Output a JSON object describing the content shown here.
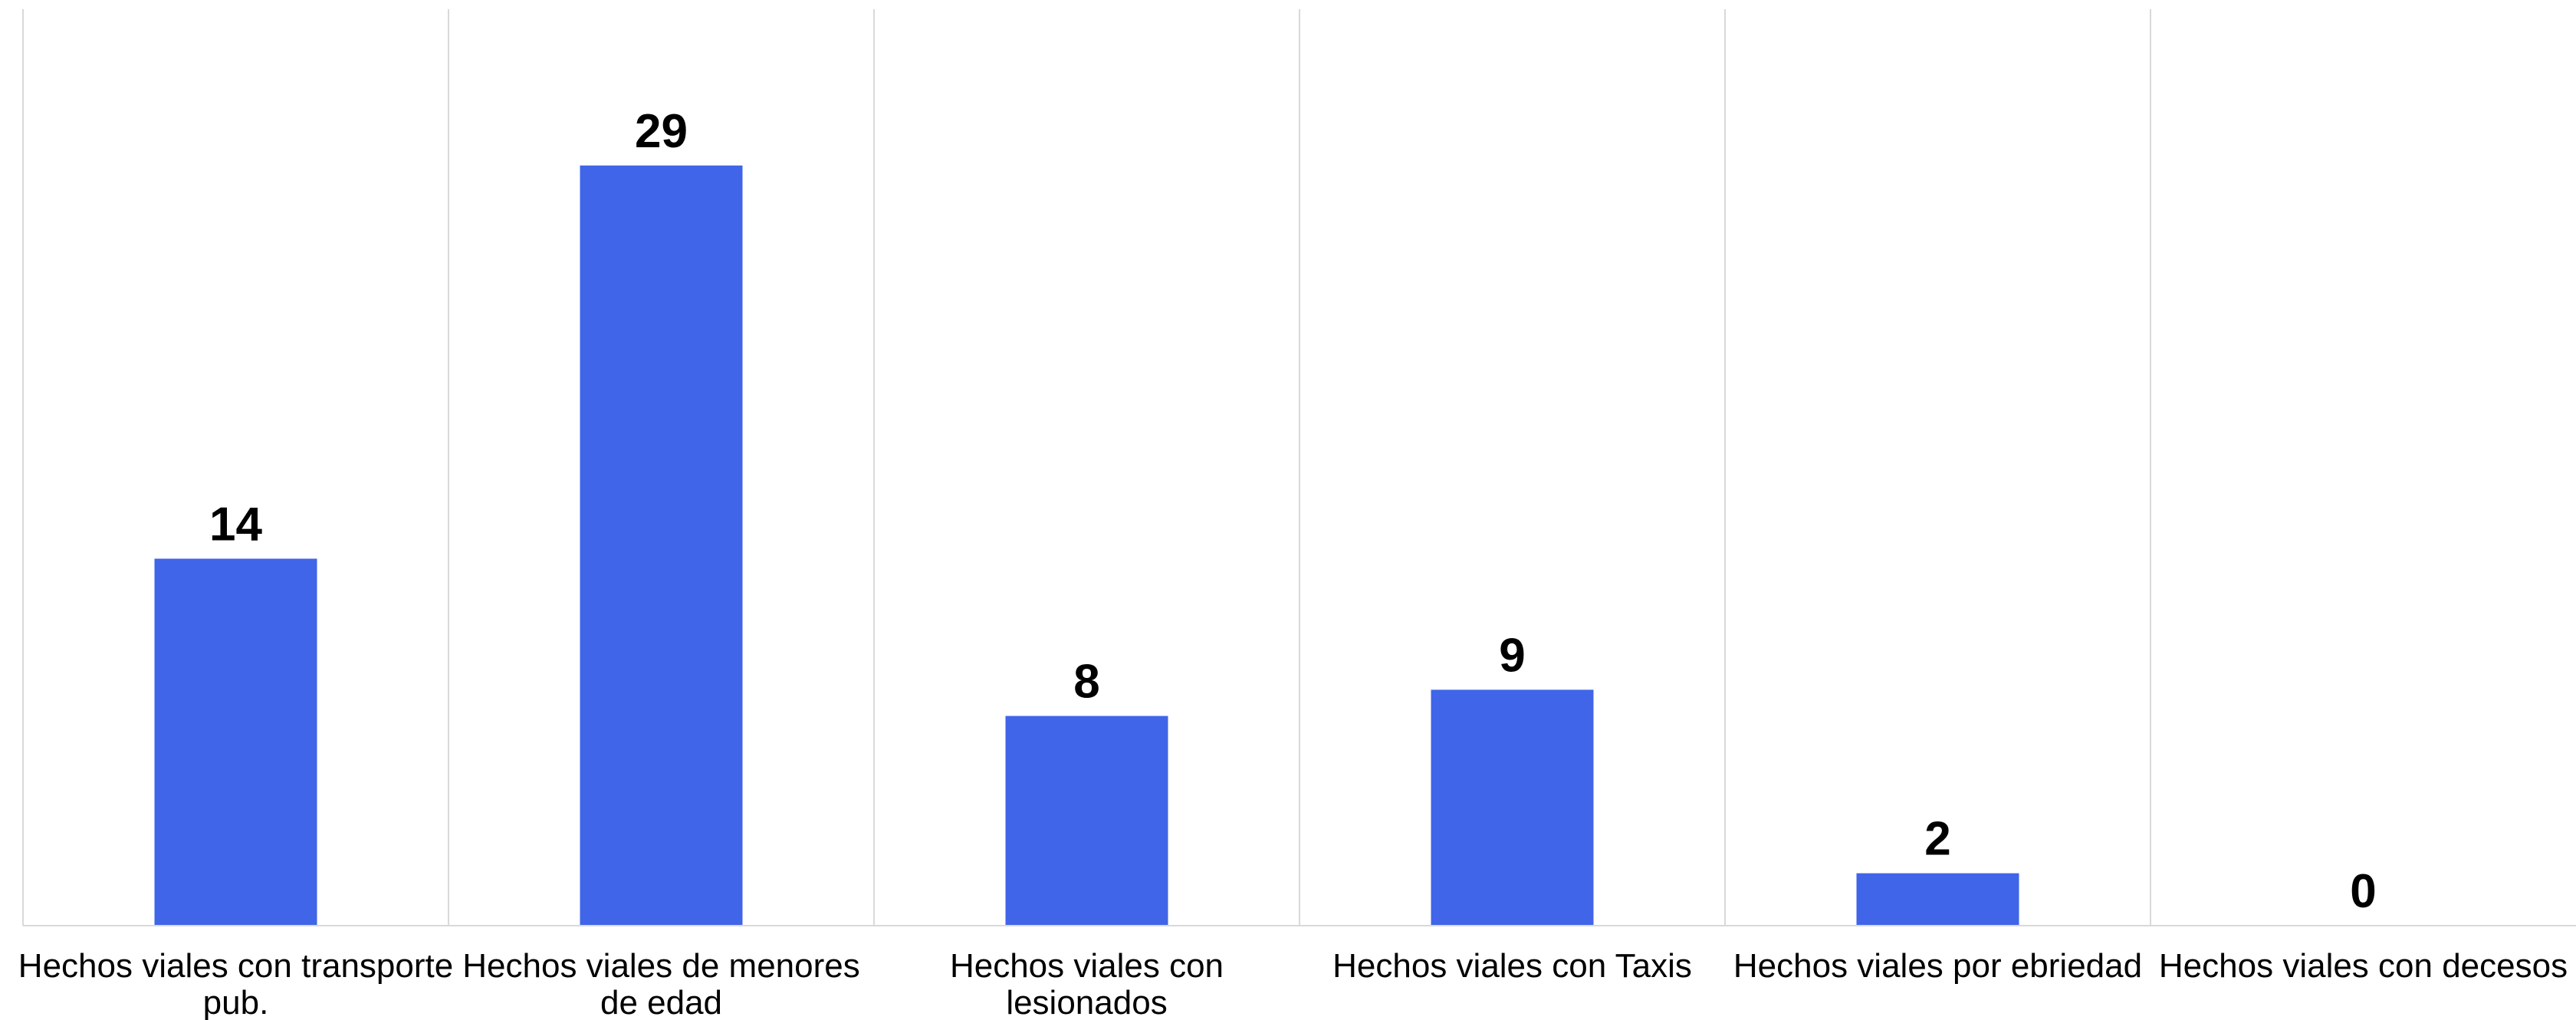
{
  "chart_data": {
    "type": "bar",
    "categories": [
      [
        "Hechos viales con transporte",
        "pub."
      ],
      [
        "Hechos viales de menores",
        "de edad"
      ],
      [
        "Hechos viales con",
        "lesionados"
      ],
      [
        "Hechos viales con Taxis"
      ],
      [
        "Hechos viales por ebriedad"
      ],
      [
        "Hechos viales con decesos"
      ]
    ],
    "values": [
      14,
      29,
      8,
      9,
      2,
      0
    ],
    "title": "",
    "xlabel": "",
    "ylabel": "",
    "ylim": [
      0,
      35
    ],
    "grid": "vertical",
    "legend": "none",
    "colors": {
      "bar": "#4065E8",
      "grid": "#D9D9D9",
      "axis": "#D9D9D9",
      "text": "#000000"
    }
  }
}
